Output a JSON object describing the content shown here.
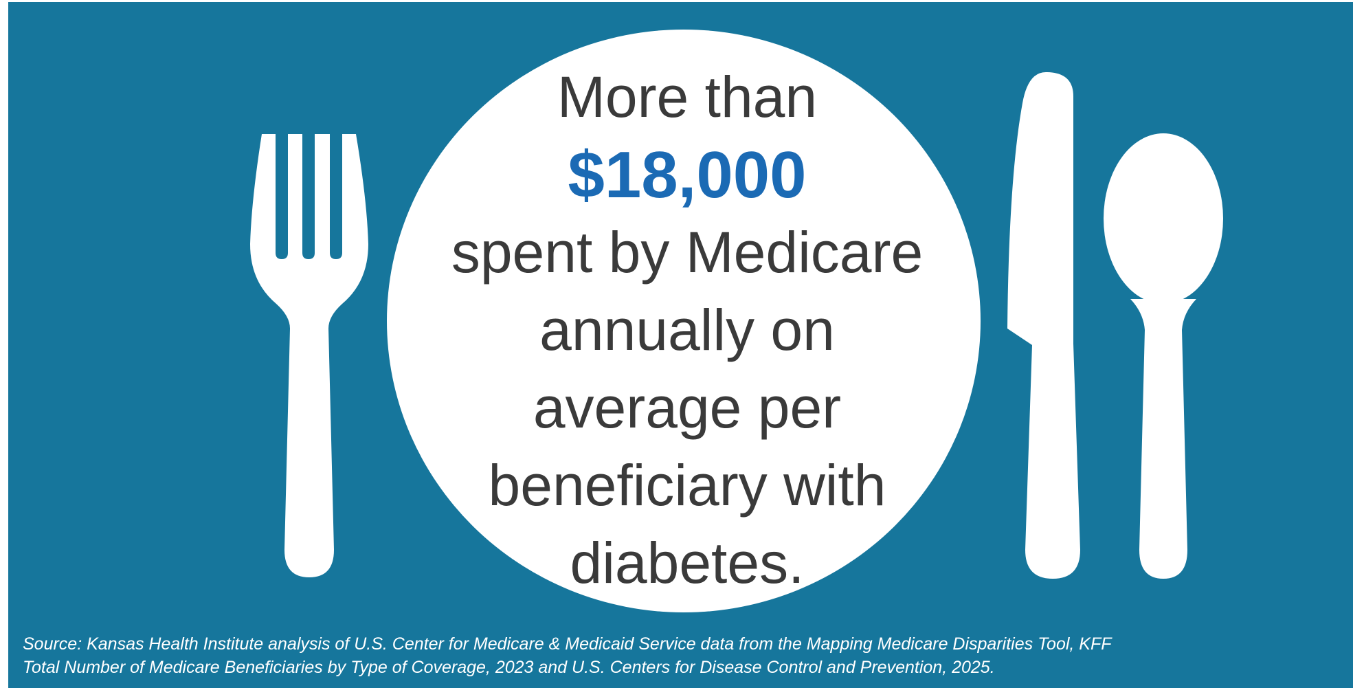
{
  "colors": {
    "background": "#16769c",
    "plate": "#ffffff",
    "text": "#3a3a3a",
    "highlight": "#1b6ab4",
    "source_text": "#ffffff"
  },
  "icons": [
    "fork-icon",
    "plate-icon",
    "knife-icon",
    "spoon-icon"
  ],
  "headline": {
    "line1": "More than",
    "amount": "$18,000",
    "line3": "spent by Medicare",
    "line4": "annually on",
    "line5": "average per",
    "line6": "beneficiary with",
    "line7": "diabetes."
  },
  "source": {
    "line1": "Source: Kansas Health Institute analysis of U.S. Center for Medicare & Medicaid Service data from the Mapping Medicare Disparities Tool, KFF",
    "line2": "Total Number of Medicare Beneficiaries by Type of Coverage, 2023 and U.S. Centers for Disease Control and Prevention, 2025."
  }
}
